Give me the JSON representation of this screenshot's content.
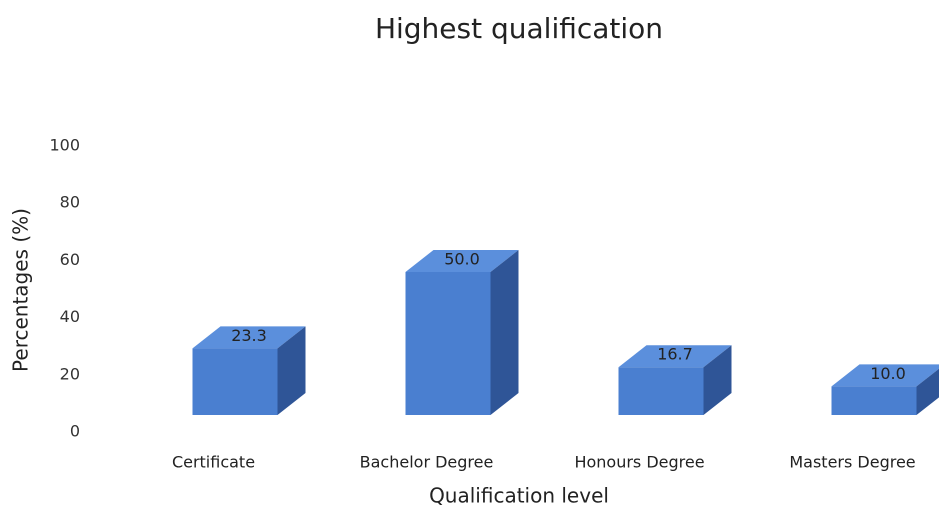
{
  "chart_data": {
    "type": "bar3d",
    "title": "Highest qualification",
    "x_label": "Qualification level",
    "y_label": "Percentages (%)",
    "categories": [
      "Certificate",
      "Bachelor Degree",
      "Honours Degree",
      "Masters Degree"
    ],
    "values": [
      23.3,
      50,
      16.7,
      10
    ],
    "value_labels": [
      "23.3",
      "50.0",
      "16.7",
      "10.0"
    ],
    "color": "#4a7fd0",
    "ylim": [
      0,
      100
    ],
    "yticks": [
      0,
      20,
      40,
      60,
      80,
      100
    ],
    "grid": false
  }
}
